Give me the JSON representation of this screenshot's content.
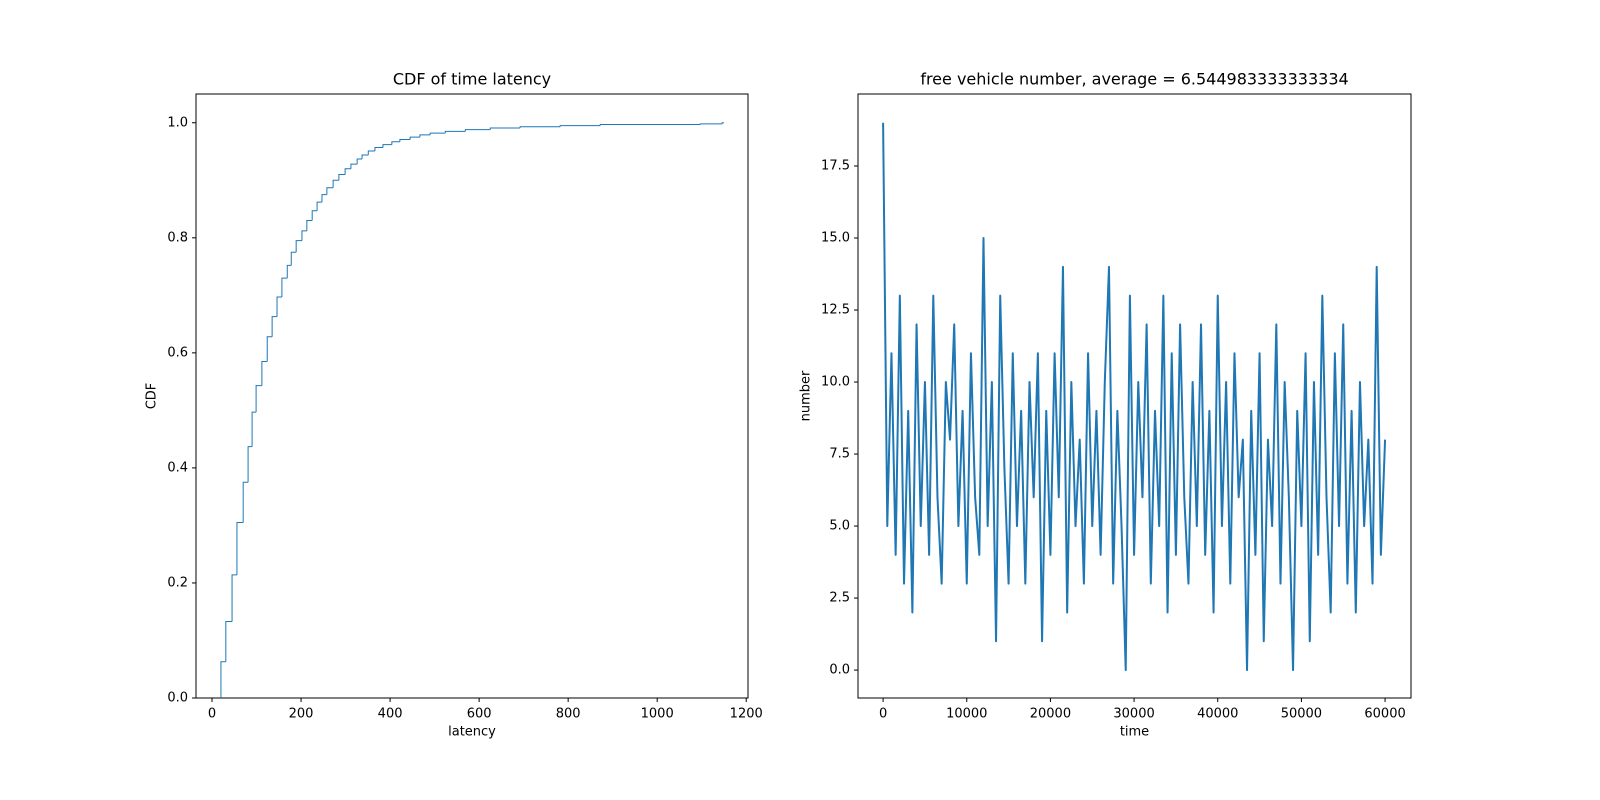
{
  "chart_data": [
    {
      "type": "step",
      "title": "CDF of time latency",
      "xlabel": "latency",
      "ylabel": "CDF",
      "color": "#1f77b4",
      "x": [
        20,
        31,
        45,
        56,
        70,
        81,
        90,
        99,
        112,
        124,
        135,
        146,
        157,
        169,
        178,
        189,
        202,
        213,
        225,
        236,
        247,
        258,
        272,
        285,
        299,
        312,
        326,
        337,
        351,
        366,
        384,
        404,
        422,
        445,
        467,
        490,
        524,
        569,
        625,
        692,
        782,
        872,
        1097,
        1146,
        1150
      ],
      "values": [
        0.063,
        0.133,
        0.214,
        0.305,
        0.375,
        0.437,
        0.497,
        0.543,
        0.585,
        0.628,
        0.663,
        0.697,
        0.73,
        0.752,
        0.775,
        0.795,
        0.812,
        0.83,
        0.847,
        0.862,
        0.875,
        0.887,
        0.9,
        0.91,
        0.92,
        0.928,
        0.937,
        0.944,
        0.951,
        0.957,
        0.962,
        0.967,
        0.971,
        0.975,
        0.979,
        0.982,
        0.985,
        0.988,
        0.991,
        0.993,
        0.995,
        0.997,
        0.998,
        1.0,
        1.0
      ],
      "xlim": [
        -36,
        1204
      ],
      "ylim": [
        0,
        1.05
      ],
      "xticks": [
        0,
        200,
        400,
        600,
        800,
        1000,
        1200
      ],
      "yticks": [
        {
          "value": 0,
          "label": "0.0"
        },
        0.2,
        0.4,
        0.6,
        0.8,
        {
          "value": 1,
          "label": "1.0"
        }
      ]
    },
    {
      "type": "line",
      "title": "free vehicle number, average = 6.544983333333334",
      "xlabel": "time",
      "ylabel": "number",
      "color": "#1f77b4",
      "x": [
        0,
        500,
        1000,
        1500,
        2000,
        2500,
        3000,
        3500,
        4000,
        4500,
        5000,
        5500,
        6000,
        6500,
        7000,
        7500,
        8000,
        8500,
        9000,
        9500,
        10000,
        10500,
        11000,
        11500,
        12000,
        12500,
        13000,
        13500,
        14000,
        14500,
        15000,
        15500,
        16000,
        16500,
        17000,
        17500,
        18000,
        18500,
        19000,
        19500,
        20000,
        20500,
        21000,
        21500,
        22000,
        22500,
        23000,
        23500,
        24000,
        24500,
        25000,
        25500,
        26000,
        26500,
        27000,
        27500,
        28000,
        28500,
        29000,
        29500,
        30000,
        30500,
        31000,
        31500,
        32000,
        32500,
        33000,
        33500,
        34000,
        34500,
        35000,
        35500,
        36000,
        36500,
        37000,
        37500,
        38000,
        38500,
        39000,
        39500,
        40000,
        40500,
        41000,
        41500,
        42000,
        42500,
        43000,
        43500,
        44000,
        44500,
        45000,
        45500,
        46000,
        46500,
        47000,
        47500,
        48000,
        48500,
        49000,
        49500,
        50000,
        50500,
        51000,
        51500,
        52000,
        52500,
        53000,
        53500,
        54000,
        54500,
        55000,
        55500,
        56000,
        56500,
        57000,
        57500,
        58000,
        58500,
        59000,
        59500,
        60000
      ],
      "values": [
        19,
        5,
        11,
        4,
        13,
        3,
        9,
        2,
        12,
        5,
        10,
        4,
        13,
        6,
        3,
        10,
        8,
        12,
        5,
        9,
        3,
        11,
        6,
        4,
        15,
        5,
        10,
        1,
        13,
        7,
        3,
        11,
        5,
        9,
        3,
        10,
        6,
        11,
        1,
        9,
        4,
        11,
        6,
        14,
        2,
        10,
        5,
        8,
        3,
        11,
        5,
        9,
        4,
        10,
        14,
        3,
        9,
        5,
        0,
        13,
        4,
        10,
        6,
        12,
        3,
        9,
        5,
        13,
        2,
        11,
        4,
        12,
        6,
        3,
        10,
        5,
        12,
        4,
        9,
        2,
        13,
        5,
        10,
        3,
        11,
        6,
        8,
        0,
        9,
        4,
        11,
        1,
        8,
        5,
        12,
        3,
        10,
        6,
        0,
        9,
        5,
        11,
        1,
        10,
        4,
        13,
        6,
        2,
        11,
        5,
        12,
        3,
        9,
        2,
        10,
        5,
        8,
        3,
        14,
        4,
        8
      ],
      "xlim": [
        -3000,
        63100
      ],
      "ylim": [
        -0.97,
        20
      ],
      "xticks": [
        0,
        10000,
        20000,
        30000,
        40000,
        50000,
        60000
      ],
      "yticks": [
        {
          "value": 0,
          "label": "0.0"
        },
        2.5,
        {
          "value": 5,
          "label": "5.0"
        },
        7.5,
        {
          "value": 10,
          "label": "10.0"
        },
        12.5,
        {
          "value": 15,
          "label": "15.0"
        },
        17.5
      ]
    }
  ]
}
